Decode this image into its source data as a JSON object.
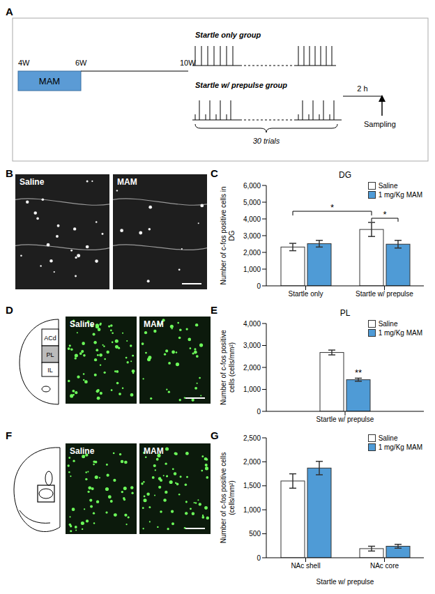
{
  "panel_labels": [
    "A",
    "B",
    "C",
    "D",
    "E",
    "F",
    "G"
  ],
  "timeline": {
    "weeks": [
      "4W",
      "6W",
      "10W"
    ],
    "treatment": "MAM",
    "groups": [
      "Startle only group",
      "Startle w/ prepulse group"
    ],
    "trials": "30 trials",
    "interval": "2 h",
    "endpoint": "Sampling"
  },
  "images": {
    "B": {
      "labels": [
        "Saline",
        "MAM"
      ]
    },
    "D": {
      "regions": [
        "ACd",
        "PL",
        "IL"
      ],
      "labels": [
        "Saline",
        "MAM"
      ]
    },
    "F": {
      "labels": [
        "Saline",
        "MAM"
      ]
    }
  },
  "chart_data": [
    {
      "type": "bar",
      "title": "DG",
      "y_label": "Number of c-fos positive cells in DG",
      "categories": [
        "Startle only",
        "Startle w/ prepulse"
      ],
      "series": [
        {
          "name": "Saline",
          "color": "#ffffff",
          "values": [
            2320,
            3370
          ],
          "errors": [
            220,
            420
          ]
        },
        {
          "name": "1 mg/Kg MAM",
          "color": "#4f9bd6",
          "values": [
            2520,
            2490
          ],
          "errors": [
            200,
            230
          ]
        }
      ],
      "ylim": [
        0,
        6000
      ],
      "yticks": [
        0,
        {
          "value": 1000,
          "label": "1,000"
        },
        {
          "value": 2000,
          "label": "2,000"
        },
        {
          "value": 3000,
          "label": "3,000"
        },
        {
          "value": 4000,
          "label": "4,000"
        },
        {
          "value": 5000,
          "label": "5,000"
        },
        {
          "value": 6000,
          "label": "6,000"
        }
      ],
      "legend": "upper right",
      "annotations": [
        {
          "text": "*",
          "series": "Saline",
          "compare": [
            "Startle only",
            "Startle w/ prepulse"
          ]
        },
        {
          "text": "*",
          "category": "Startle w/ prepulse",
          "compare": [
            "Saline",
            "1 mg/Kg MAM"
          ]
        }
      ]
    },
    {
      "type": "bar",
      "title": "PL",
      "y_label": "Number of c-fos positive cells (cells/mm²)",
      "categories": [
        "Startle w/ prepulse"
      ],
      "series": [
        {
          "name": "Saline",
          "color": "#ffffff",
          "values": [
            2680
          ],
          "errors": [
            110
          ]
        },
        {
          "name": "1 mg/Kg MAM",
          "color": "#4f9bd6",
          "values": [
            1440
          ],
          "errors": [
            70
          ]
        }
      ],
      "ylim": [
        0,
        4000
      ],
      "yticks": [
        0,
        {
          "value": 1000,
          "label": "1,000"
        },
        {
          "value": 2000,
          "label": "2,000"
        },
        {
          "value": 3000,
          "label": "3,000"
        },
        {
          "value": 4000,
          "label": "4,000"
        }
      ],
      "legend": "upper right",
      "annotations": [
        {
          "text": "**",
          "series": "1 mg/Kg MAM",
          "category": "Startle w/ prepulse"
        }
      ]
    },
    {
      "type": "bar",
      "y_label": "Number of c-fos positive cells (cells/mm²)",
      "x_label": "Startle w/ prepulse",
      "categories": [
        "NAc shell",
        "NAc core"
      ],
      "series": [
        {
          "name": "Saline",
          "color": "#ffffff",
          "values": [
            1600,
            190
          ],
          "errors": [
            150,
            50
          ]
        },
        {
          "name": "1 mg/Kg MAM",
          "color": "#4f9bd6",
          "values": [
            1870,
            240
          ],
          "errors": [
            140,
            40
          ]
        }
      ],
      "ylim": [
        0,
        2500
      ],
      "yticks": [
        0,
        500,
        {
          "value": 1000,
          "label": "1,000"
        },
        {
          "value": 1500,
          "label": "1,500"
        },
        {
          "value": 2000,
          "label": "2,000"
        },
        {
          "value": 2500,
          "label": "2,500"
        }
      ],
      "legend": "upper right"
    }
  ]
}
